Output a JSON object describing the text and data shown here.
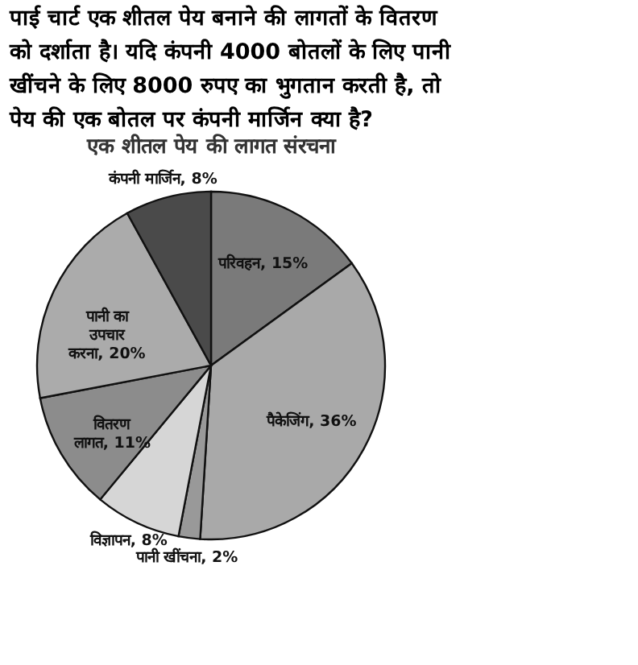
{
  "chart_data": {
    "type": "pie",
    "title": "एक शीतल पेय की लागत संरचना",
    "annotations": [
      "पाई चार्ट एक शीतल पेय बनाने की लागतों के वितरण को दर्शाता है। यदि कंपनी 4000 बोतलों के लिए पानी खींचने के लिए 8000  रुपए का भुगतान करती है, तो पेय की एक बोतल पर कंपनी मार्जिन क्या है?"
    ],
    "categories": [
      "परिवहन",
      "पैकेजिंग",
      "पानी खींचना",
      "विज्ञापन",
      "वितरण लागत",
      "पानी का उपचार करना",
      "कंपनी मार्जिन"
    ],
    "values": [
      15,
      36,
      2,
      8,
      11,
      20,
      8
    ],
    "value_labels": [
      "15%",
      "36%",
      "2%",
      "8%",
      "11%",
      "20%",
      "8%"
    ],
    "colors": [
      "#7a7a7a",
      "#a9a9a9",
      "#999999",
      "#d6d6d6",
      "#8c8c8c",
      "#ababab",
      "#4a4a4a"
    ],
    "legend": false
  }
}
